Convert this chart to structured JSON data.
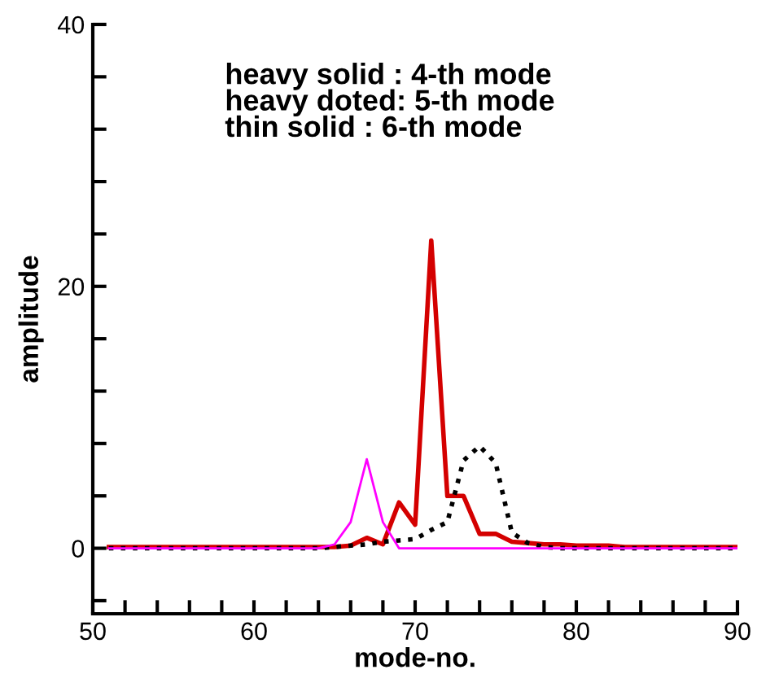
{
  "chart_data": {
    "type": "line",
    "xlabel": "mode-no.",
    "ylabel": "amplitude",
    "xlim": [
      50,
      90
    ],
    "ylim": [
      -5,
      40
    ],
    "xticks": [
      50,
      {
        "value": 52,
        "label": null
      },
      {
        "value": 54,
        "label": null
      },
      {
        "value": 56,
        "label": null
      },
      {
        "value": 58,
        "label": null
      },
      60,
      {
        "value": 62,
        "label": null
      },
      {
        "value": 64,
        "label": null
      },
      {
        "value": 66,
        "label": null
      },
      {
        "value": 68,
        "label": null
      },
      70,
      {
        "value": 72,
        "label": null
      },
      {
        "value": 74,
        "label": null
      },
      {
        "value": 76,
        "label": null
      },
      {
        "value": 78,
        "label": null
      },
      80,
      {
        "value": 82,
        "label": null
      },
      {
        "value": 84,
        "label": null
      },
      {
        "value": 86,
        "label": null
      },
      {
        "value": 88,
        "label": null
      },
      90
    ],
    "yticks": [
      {
        "value": -4,
        "label": null
      },
      0,
      {
        "value": 4,
        "label": null
      },
      {
        "value": 8,
        "label": null
      },
      {
        "value": 12,
        "label": null
      },
      {
        "value": 16,
        "label": null
      },
      20,
      {
        "value": 24,
        "label": null
      },
      {
        "value": 28,
        "label": null
      },
      {
        "value": 32,
        "label": null
      },
      {
        "value": 36,
        "label": null
      },
      40
    ],
    "grid": false,
    "annotations": [
      "heavy solid : 4-th mode",
      "heavy doted: 5-th mode",
      "thin solid : 6-th mode"
    ],
    "x": [
      51,
      52,
      53,
      54,
      55,
      56,
      57,
      58,
      59,
      60,
      61,
      62,
      63,
      64,
      65,
      66,
      67,
      68,
      69,
      70,
      71,
      72,
      73,
      74,
      75,
      76,
      77,
      78,
      79,
      80,
      81,
      82,
      83,
      84,
      85,
      86,
      87,
      88,
      89,
      90
    ],
    "series": [
      {
        "color": "#d40000",
        "line_style": "solid",
        "values": [
          0.1,
          0.1,
          0.1,
          0.1,
          0.1,
          0.1,
          0.1,
          0.1,
          0.1,
          0.1,
          0.1,
          0.1,
          0.1,
          0.1,
          0.1,
          0.2,
          0.8,
          0.3,
          3.5,
          1.8,
          23.5,
          4,
          4,
          1.1,
          1.1,
          0.5,
          0.4,
          0.3,
          0.3,
          0.2,
          0.2,
          0.2,
          0.1,
          0.1,
          0.1,
          0.1,
          0.1,
          0.1,
          0.1,
          0.1
        ]
      },
      {
        "color": "#000000",
        "line_style": "dotted",
        "values": [
          0,
          0,
          0,
          0,
          0,
          0,
          0,
          0,
          0,
          0,
          0,
          0,
          0,
          0,
          0.1,
          0.2,
          0.3,
          0.5,
          0.6,
          0.7,
          1.4,
          2,
          6.7,
          7.8,
          6.5,
          1.2,
          0.4,
          0.1,
          0,
          0,
          0,
          0,
          0,
          0,
          0,
          0,
          0,
          0,
          0,
          0
        ]
      },
      {
        "color": "#ff00ff",
        "line_style": "solid",
        "values": [
          0,
          0,
          0,
          0,
          0,
          0,
          0,
          0,
          0,
          0,
          0,
          0,
          0,
          0,
          0.3,
          2,
          6.8,
          2,
          0,
          0,
          0,
          0,
          0,
          0,
          0,
          0,
          0,
          0,
          0,
          0,
          0,
          0,
          0,
          0,
          0,
          0,
          0,
          0,
          0,
          0
        ]
      }
    ]
  }
}
